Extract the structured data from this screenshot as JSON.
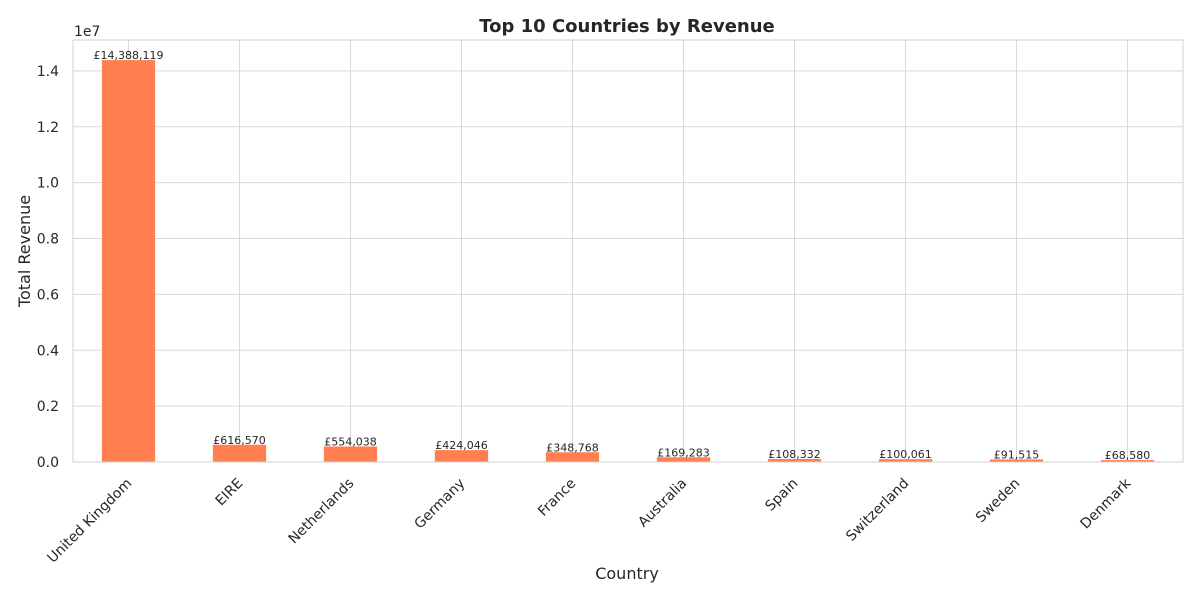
{
  "chart_data": {
    "type": "bar",
    "title": "Top 10 Countries by Revenue",
    "xlabel": "Country",
    "ylabel": "Total Revenue",
    "offset_label": "1e7",
    "categories": [
      "United Kingdom",
      "EIRE",
      "Netherlands",
      "Germany",
      "France",
      "Australia",
      "Spain",
      "Switzerland",
      "Sweden",
      "Denmark"
    ],
    "values": [
      14388119,
      616570,
      554038,
      424046,
      348768,
      169283,
      108332,
      100061,
      91515,
      68580
    ],
    "data_labels": [
      "£14,388,119",
      "£616,570",
      "£554,038",
      "£424,046",
      "£348,768",
      "£169,283",
      "£108,332",
      "£100,061",
      "£91,515",
      "£68,580"
    ],
    "ylim": [
      0,
      15107525
    ],
    "yticks": [
      0,
      2000000,
      4000000,
      6000000,
      8000000,
      10000000,
      12000000,
      14000000
    ],
    "ytick_labels": [
      "0.0",
      "0.2",
      "0.4",
      "0.6",
      "0.8",
      "1.0",
      "1.2",
      "1.4"
    ],
    "grid": true,
    "bar_color": "#ff7f50"
  }
}
